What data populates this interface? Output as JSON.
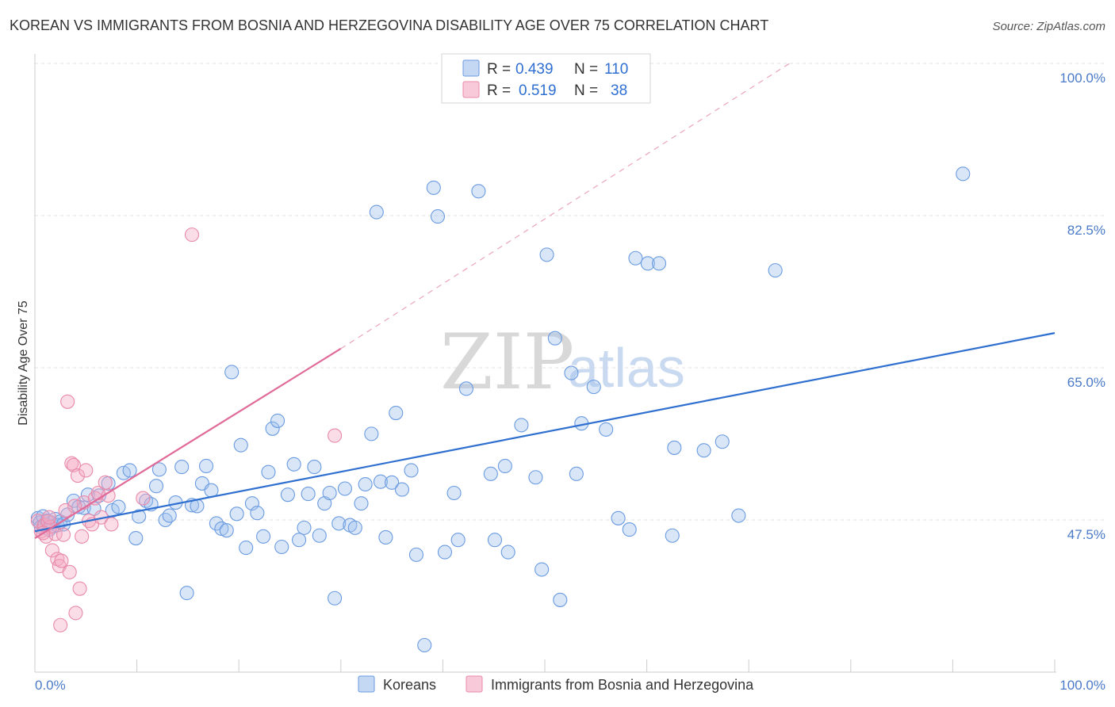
{
  "chart_data": {
    "type": "scatter",
    "title": "KOREAN VS IMMIGRANTS FROM BOSNIA AND HERZEGOVINA DISABILITY AGE OVER 75 CORRELATION CHART",
    "source": "Source: ZipAtlas.com",
    "xlabel": "",
    "ylabel": "Disability Age Over 75",
    "xlim": [
      0,
      100
    ],
    "ylim": [
      30,
      100
    ],
    "x_tick_labels": {
      "left": "0.0%",
      "right": "100.0%"
    },
    "y_ticks": [
      {
        "value": 100,
        "label": "100.0%"
      },
      {
        "value": 82.5,
        "label": "82.5%"
      },
      {
        "value": 65,
        "label": "65.0%"
      },
      {
        "value": 47.5,
        "label": "47.5%"
      }
    ],
    "legend": {
      "r_label": "R =",
      "n_label": "N =",
      "rows": [
        {
          "series": "Koreans",
          "r": "0.439",
          "n": "110",
          "color": "#6a9be0"
        },
        {
          "series": "Immigrants from Bosnia and Herzegovina",
          "r": "0.519",
          "n": "38",
          "color": "#e88aaa"
        }
      ]
    },
    "watermark": {
      "zip": "ZIP",
      "atlas": "atlas"
    },
    "series": [
      {
        "name": "Koreans",
        "color": "#6a9be0",
        "trend": {
          "x0": 0,
          "y0": 46.2,
          "x1": 100,
          "y1": 69.0
        },
        "points": [
          [
            0.3,
            47.7
          ],
          [
            0.5,
            47.2
          ],
          [
            0.6,
            46.7
          ],
          [
            0.8,
            47.9
          ],
          [
            1.0,
            46.9
          ],
          [
            1.2,
            47.4
          ],
          [
            1.4,
            46.4
          ],
          [
            1.6,
            47.2
          ],
          [
            1.8,
            46.8
          ],
          [
            2.0,
            47.6
          ],
          [
            2.2,
            46.9
          ],
          [
            2.5,
            47.3
          ],
          [
            2.8,
            47.0
          ],
          [
            3.2,
            48.1
          ],
          [
            3.8,
            49.7
          ],
          [
            4.3,
            49.0
          ],
          [
            4.8,
            48.9
          ],
          [
            5.2,
            50.4
          ],
          [
            5.8,
            48.8
          ],
          [
            6.3,
            50.3
          ],
          [
            7.2,
            51.7
          ],
          [
            7.6,
            48.6
          ],
          [
            8.2,
            49.0
          ],
          [
            8.7,
            52.9
          ],
          [
            9.3,
            53.2
          ],
          [
            9.9,
            45.4
          ],
          [
            10.2,
            47.9
          ],
          [
            10.9,
            49.7
          ],
          [
            11.4,
            49.3
          ],
          [
            11.9,
            51.4
          ],
          [
            12.2,
            53.3
          ],
          [
            12.8,
            47.5
          ],
          [
            13.2,
            48.0
          ],
          [
            13.8,
            49.5
          ],
          [
            14.4,
            53.6
          ],
          [
            14.9,
            39.1
          ],
          [
            15.4,
            49.2
          ],
          [
            15.9,
            49.1
          ],
          [
            16.4,
            51.7
          ],
          [
            16.8,
            53.7
          ],
          [
            17.3,
            50.9
          ],
          [
            17.8,
            47.1
          ],
          [
            18.3,
            46.5
          ],
          [
            18.8,
            46.3
          ],
          [
            19.3,
            64.5
          ],
          [
            19.8,
            48.2
          ],
          [
            20.2,
            56.1
          ],
          [
            20.7,
            44.3
          ],
          [
            21.3,
            49.4
          ],
          [
            21.8,
            48.3
          ],
          [
            22.4,
            45.6
          ],
          [
            22.9,
            53.0
          ],
          [
            23.3,
            58.0
          ],
          [
            23.8,
            58.9
          ],
          [
            24.2,
            44.4
          ],
          [
            24.8,
            50.4
          ],
          [
            25.4,
            53.9
          ],
          [
            25.9,
            45.2
          ],
          [
            26.4,
            46.6
          ],
          [
            26.8,
            50.5
          ],
          [
            27.4,
            53.6
          ],
          [
            27.9,
            45.7
          ],
          [
            28.4,
            49.4
          ],
          [
            28.9,
            50.6
          ],
          [
            29.4,
            38.5
          ],
          [
            29.8,
            47.1
          ],
          [
            30.4,
            51.1
          ],
          [
            30.9,
            46.9
          ],
          [
            31.4,
            46.6
          ],
          [
            32.0,
            49.4
          ],
          [
            32.4,
            51.6
          ],
          [
            33.0,
            57.4
          ],
          [
            33.5,
            82.9
          ],
          [
            33.9,
            51.9
          ],
          [
            34.4,
            45.5
          ],
          [
            35.0,
            51.8
          ],
          [
            35.4,
            59.8
          ],
          [
            36.0,
            51.0
          ],
          [
            36.9,
            53.2
          ],
          [
            37.4,
            43.5
          ],
          [
            38.2,
            33.1
          ],
          [
            39.1,
            85.7
          ],
          [
            39.5,
            82.4
          ],
          [
            40.2,
            43.8
          ],
          [
            41.1,
            50.6
          ],
          [
            41.5,
            45.2
          ],
          [
            42.3,
            62.6
          ],
          [
            43.5,
            85.3
          ],
          [
            44.7,
            52.8
          ],
          [
            45.1,
            45.2
          ],
          [
            46.1,
            53.7
          ],
          [
            46.4,
            43.8
          ],
          [
            47.7,
            58.4
          ],
          [
            49.1,
            52.4
          ],
          [
            49.7,
            41.8
          ],
          [
            50.2,
            78.0
          ],
          [
            51.0,
            68.4
          ],
          [
            51.5,
            38.3
          ],
          [
            52.6,
            64.4
          ],
          [
            53.1,
            52.8
          ],
          [
            53.6,
            58.6
          ],
          [
            54.8,
            62.8
          ],
          [
            56.0,
            57.9
          ],
          [
            57.2,
            47.7
          ],
          [
            58.3,
            46.4
          ],
          [
            58.9,
            77.6
          ],
          [
            60.1,
            77.0
          ],
          [
            61.2,
            77.0
          ],
          [
            62.5,
            45.7
          ],
          [
            62.7,
            55.8
          ],
          [
            65.6,
            55.5
          ],
          [
            67.4,
            56.5
          ],
          [
            69.0,
            48.0
          ],
          [
            72.6,
            76.2
          ],
          [
            91.0,
            87.3
          ]
        ]
      },
      {
        "name": "Immigrants from Bosnia and Herzegovina",
        "color": "#e88aaa",
        "trend": {
          "x0": 0,
          "y0": 45.4,
          "x1": 30,
          "y1": 67.2,
          "dash_x1": 74,
          "dash_y1": 100
        },
        "points": [
          [
            0.3,
            47.4
          ],
          [
            0.6,
            46.2
          ],
          [
            0.9,
            46.9
          ],
          [
            1.1,
            45.6
          ],
          [
            1.3,
            47.3
          ],
          [
            1.5,
            46.7
          ],
          [
            1.7,
            44.0
          ],
          [
            2.0,
            45.9
          ],
          [
            2.2,
            43.0
          ],
          [
            2.4,
            42.2
          ],
          [
            2.6,
            42.8
          ],
          [
            2.8,
            45.8
          ],
          [
            3.0,
            48.6
          ],
          [
            3.2,
            61.1
          ],
          [
            3.4,
            41.5
          ],
          [
            3.6,
            54.0
          ],
          [
            3.8,
            53.8
          ],
          [
            4.0,
            36.8
          ],
          [
            4.2,
            52.6
          ],
          [
            4.4,
            39.6
          ],
          [
            4.6,
            45.6
          ],
          [
            4.8,
            49.5
          ],
          [
            5.0,
            53.2
          ],
          [
            5.3,
            47.4
          ],
          [
            5.6,
            47.0
          ],
          [
            5.9,
            50.0
          ],
          [
            6.2,
            50.6
          ],
          [
            6.5,
            47.8
          ],
          [
            6.9,
            51.8
          ],
          [
            7.2,
            50.3
          ],
          [
            7.5,
            47.0
          ],
          [
            10.6,
            50.0
          ],
          [
            15.4,
            80.3
          ],
          [
            29.4,
            57.2
          ],
          [
            2.5,
            35.4
          ],
          [
            1.4,
            47.8
          ],
          [
            0.8,
            46.0
          ],
          [
            3.9,
            49.1
          ]
        ]
      }
    ],
    "bottom_legend": [
      "Koreans",
      "Immigrants from Bosnia and Herzegovina"
    ]
  }
}
